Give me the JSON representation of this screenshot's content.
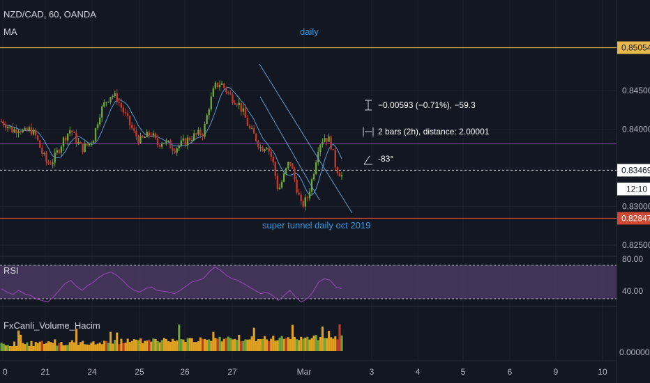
{
  "header": {
    "symbol": "NZD/CAD, 60, OANDA",
    "indicator": "MA"
  },
  "annotations": {
    "daily": "daily",
    "tunnel": "super tunnel daily oct 2019",
    "measure_price": "−0.00593 (−0.71%), −59.3",
    "measure_bars": "2 bars (2h), distance: 2.00001",
    "measure_angle": "-83°"
  },
  "price_axis": {
    "labels": [
      "0.84500",
      "0.84000",
      "0.83000",
      "0.82500"
    ],
    "badge_top": "0.85054",
    "badge_current": "0.83469",
    "badge_countdown": "12:10",
    "badge_bottom": "0.82847"
  },
  "rsi_panel": {
    "label": "RSI",
    "labels": [
      "80.00",
      "40.00"
    ]
  },
  "volume_panel": {
    "label": "FxCanli_Volume_Hacim",
    "label_axis": "0.00000"
  },
  "time_axis": {
    "labels": [
      "0",
      "21",
      "24",
      "25",
      "26",
      "27",
      "Mar",
      "3",
      "4",
      "5",
      "6",
      "9",
      "10"
    ]
  },
  "colors": {
    "background": "#131722",
    "up": "#6ba539",
    "down": "#c0392b",
    "annotation": "#2e9be8",
    "top_line": "#e8b84a",
    "bottom_line": "#d04a33",
    "purple_line": "#8e44ad",
    "rsi_fill": "#4b3a63",
    "vol_bar": "#e0a020"
  },
  "chart_data": {
    "type": "candlestick",
    "symbol": "NZD/CAD",
    "interval": "60",
    "price_ylim": [
      0.822,
      0.853
    ],
    "levels": {
      "resistance_top": 0.85054,
      "current_price": 0.83469,
      "support_bottom": 0.82847,
      "purple_level": 0.8381
    },
    "x_categories": [
      "0",
      "21",
      "24",
      "25",
      "26",
      "27",
      "Mar",
      "3",
      "4",
      "5",
      "6",
      "9",
      "10"
    ],
    "price_path": [
      0.841,
      0.8405,
      0.8398,
      0.8402,
      0.8395,
      0.84,
      0.839,
      0.837,
      0.8355,
      0.836,
      0.8375,
      0.839,
      0.84,
      0.8385,
      0.8375,
      0.838,
      0.839,
      0.842,
      0.8435,
      0.8445,
      0.844,
      0.8425,
      0.841,
      0.8395,
      0.8385,
      0.839,
      0.8395,
      0.838,
      0.8385,
      0.838,
      0.8375,
      0.838,
      0.8385,
      0.839,
      0.8393,
      0.8395,
      0.843,
      0.8455,
      0.846,
      0.845,
      0.844,
      0.8435,
      0.842,
      0.84,
      0.839,
      0.8375,
      0.838,
      0.836,
      0.832,
      0.834,
      0.836,
      0.833,
      0.83,
      0.831,
      0.834,
      0.838,
      0.839,
      0.8385,
      0.835,
      0.834
    ],
    "rsi_levels": [
      80,
      40
    ],
    "rsi_path": [
      52,
      48,
      45,
      50,
      46,
      44,
      40,
      38,
      36,
      42,
      50,
      58,
      62,
      55,
      50,
      56,
      60,
      66,
      70,
      72,
      68,
      62,
      55,
      50,
      48,
      52,
      54,
      50,
      49,
      48,
      46,
      50,
      55,
      60,
      62,
      64,
      72,
      78,
      74,
      68,
      64,
      62,
      58,
      54,
      50,
      46,
      48,
      44,
      38,
      44,
      50,
      42,
      36,
      40,
      48,
      60,
      64,
      62,
      54,
      52
    ]
  }
}
